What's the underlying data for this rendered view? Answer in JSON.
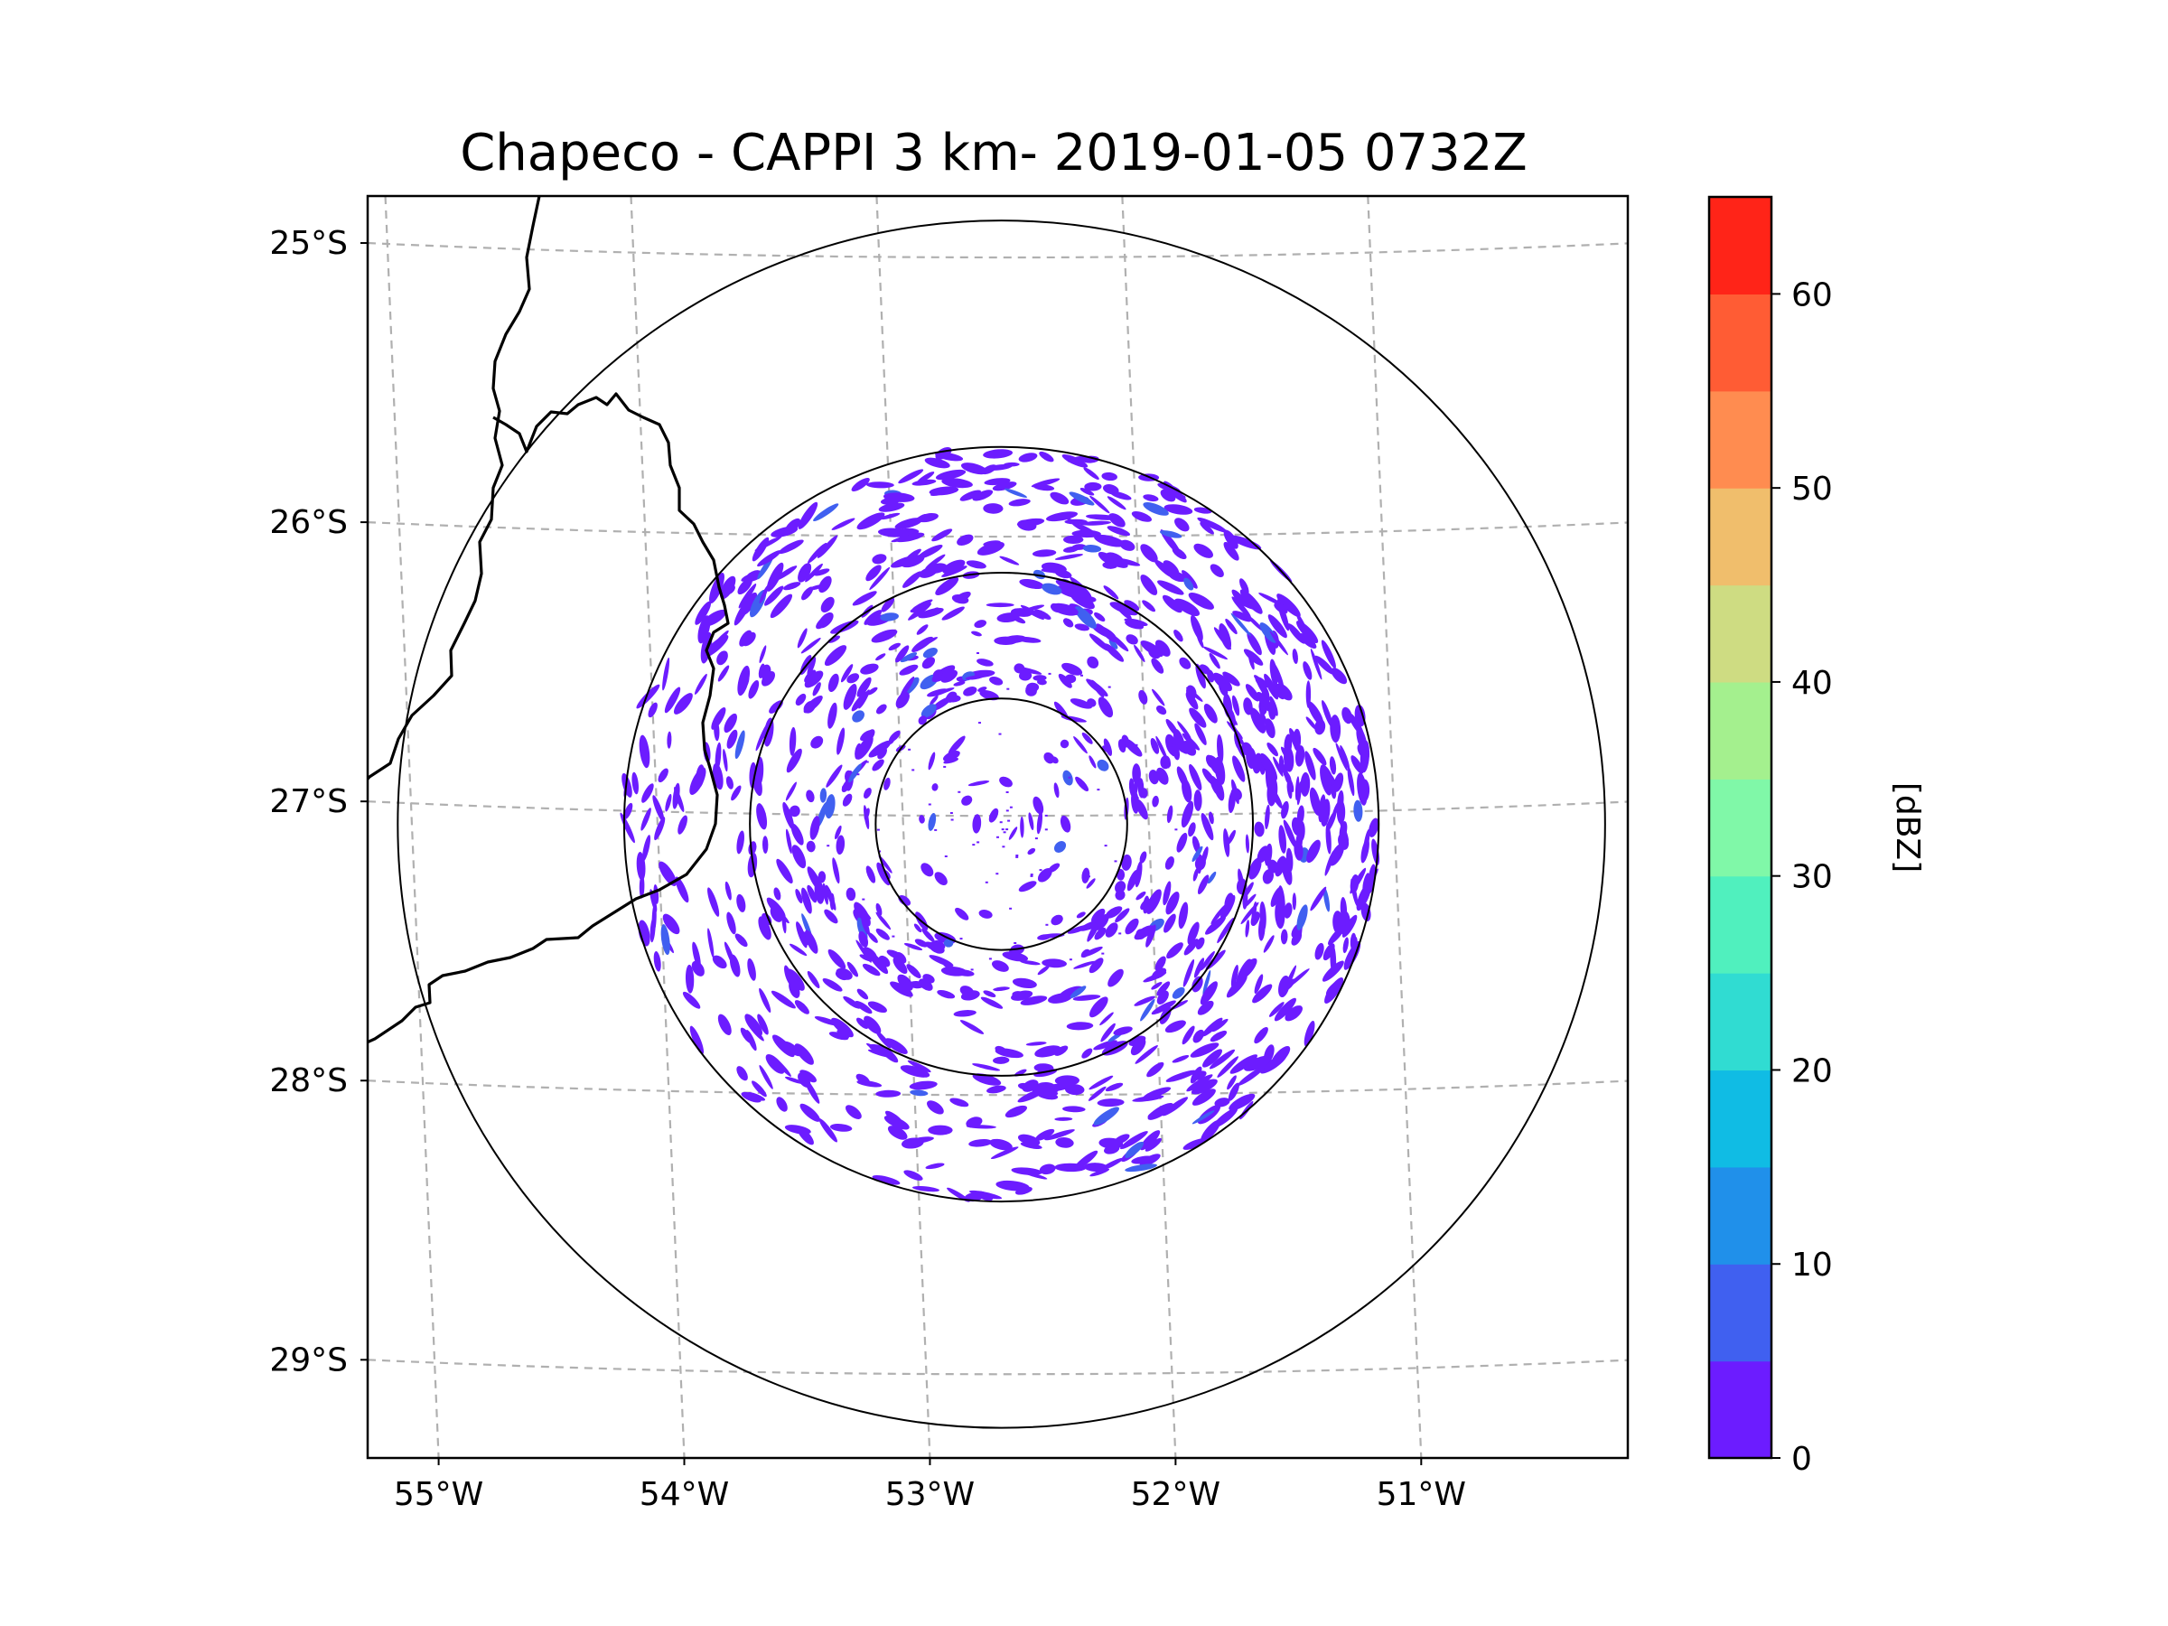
{
  "figure": {
    "title": "Chapeco - CAPPI 3 km- 2019-01-05 0732Z"
  },
  "map": {
    "lon_range": [
      -55.18,
      -50.05
    ],
    "lat_range": [
      -29.3,
      -24.78
    ],
    "lat_ticks": [
      {
        "value": -25,
        "label": "25°S"
      },
      {
        "value": -26,
        "label": "26°S"
      },
      {
        "value": -27,
        "label": "27°S"
      },
      {
        "value": -28,
        "label": "28°S"
      },
      {
        "value": -29,
        "label": "29°S"
      }
    ],
    "lon_ticks": [
      {
        "value": -55,
        "label": "55°W"
      },
      {
        "value": -54,
        "label": "54°W"
      },
      {
        "value": -53,
        "label": "53°W"
      },
      {
        "value": -52,
        "label": "52°W"
      },
      {
        "value": -51,
        "label": "51°W"
      }
    ],
    "radar_center": {
      "lon": -52.6,
      "lat": -27.03
    },
    "range_rings_km": [
      50,
      100,
      150,
      240
    ],
    "echo_color": "#6c1cff",
    "echo_minor_color": "#4060f0"
  },
  "chart_data": {
    "type": "heatmap",
    "title": "Chapeco - CAPPI 3 km- 2019-01-05 0732Z",
    "variable": "reflectivity",
    "colorbar": {
      "label": "[dBZ]",
      "ticks": [
        0,
        10,
        20,
        30,
        40,
        50,
        60
      ],
      "range": [
        0,
        65
      ],
      "levels": [
        0,
        5,
        10,
        15,
        20,
        25,
        30,
        35,
        40,
        45,
        50,
        55,
        60,
        65
      ],
      "colors": [
        "#6c1cff",
        "#4060f0",
        "#2090ea",
        "#10bce4",
        "#30dcd2",
        "#50f0be",
        "#80f8a8",
        "#a4f08e",
        "#cedc82",
        "#f0be6c",
        "#ff8c50",
        "#ff5c34",
        "#ff2418"
      ]
    },
    "observed_range_dbz": [
      0,
      10
    ]
  }
}
